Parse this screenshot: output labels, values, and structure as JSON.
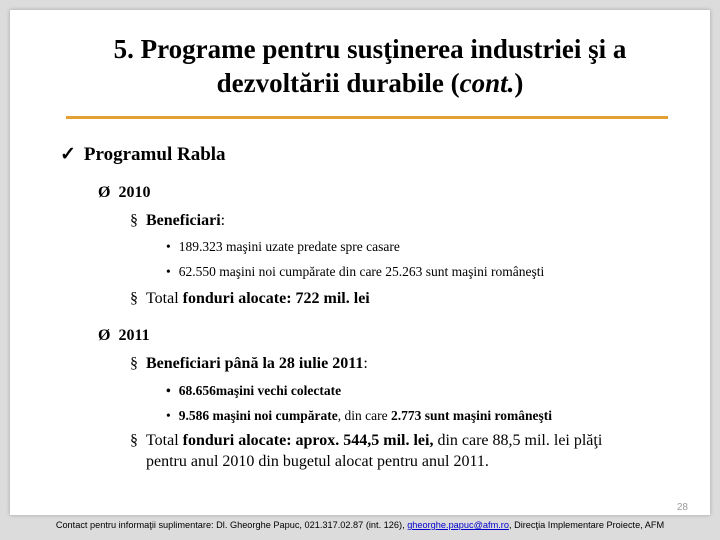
{
  "slide": {
    "title_line1": "5. Programe pentru susţinerea industriei şi a",
    "title_line2_pre": "dezvoltării durabile (",
    "title_line2_italic": "cont.",
    "title_line2_post": ")",
    "check_mark": "✓",
    "program_heading": "Programul Rabla",
    "year_marker": "Ø",
    "square_marker": "§",
    "dot_marker": "•",
    "y2010": {
      "year": "2010",
      "beneficiari_label": "Beneficiari",
      "beneficiari_colon": ":",
      "items": [
        "189.323 maşini uzate predate spre casare",
        "62.550 maşini noi cumpărate din care 25.263  sunt maşini româneşti"
      ],
      "total_pre": "Total ",
      "total_bold": "fonduri alocate: 722 mil. lei"
    },
    "y2011": {
      "year": "2011",
      "beneficiari_label": "Beneficiari până la 28 iulie 2011",
      "beneficiari_colon": ":",
      "item1": "68.656maşini vechi colectate",
      "item2_bold_a": "9.586 maşini noi cumpărate",
      "item2_mid": ", din care ",
      "item2_bold_b": "2.773 sunt maşini româneşti",
      "total_pre": "Total ",
      "total_bold": "fonduri alocate: aprox. 544,5 mil. lei,",
      "total_rest_line1": " din care 88,5 mil. lei plăţi",
      "total_line2": "pentru anul 2010 din bugetul alocat pentru anul 2011."
    },
    "page_number": "28"
  },
  "contact": {
    "pre": "Contact pentru informaţii suplimentare: Dl. Gheorghe Papuc, 021.317.02.87 (int. 126), ",
    "email": "gheorghe.papuc@afm.ro",
    "post": ", Direcţia Implementare Proiecte, AFM"
  }
}
